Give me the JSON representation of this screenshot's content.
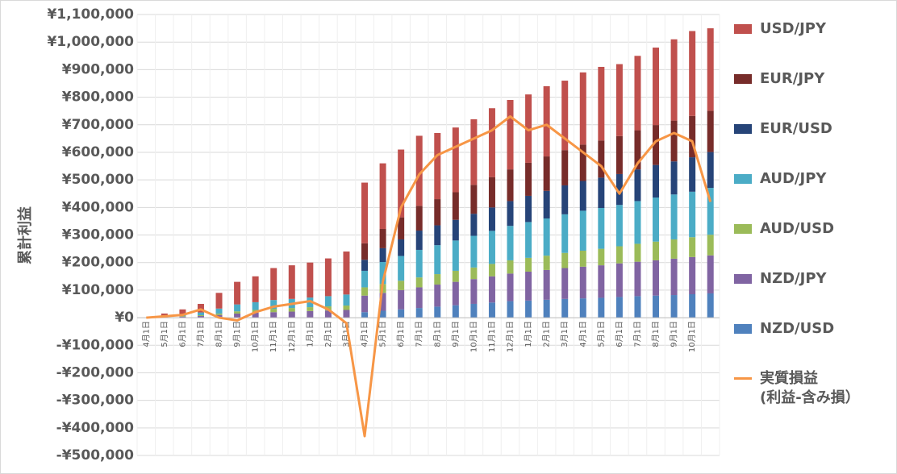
{
  "chart_data": {
    "type": "stacked-bar-line",
    "y_label": "累計利益",
    "categories": [
      "4月1日",
      "5月1日",
      "6月1日",
      "7月1日",
      "8月1日",
      "9月1日",
      "10月1日",
      "11月1日",
      "12月1日",
      "1月1日",
      "2月1日",
      "3月1日",
      "4月1日",
      "5月1日",
      "6月1日",
      "7月1日",
      "8月1日",
      "9月1日",
      "10月1日",
      "11月1日",
      "12月1日",
      "1月1日",
      "2月1日",
      "3月1日",
      "4月1日",
      "5月1日",
      "6月1日",
      "7月1日",
      "8月1日",
      "9月1日",
      "10月1日",
      null
    ],
    "series": [
      {
        "name": "USD/JPY",
        "color": "#c0504d",
        "values": [
          0,
          9000,
          18000,
          31000,
          57000,
          82000,
          94000,
          116000,
          122000,
          127000,
          137000,
          156000,
          220000,
          238000,
          246000,
          254000,
          240000,
          235000,
          238000,
          250000,
          252000,
          248000,
          255000,
          252000,
          262000,
          267000,
          261000,
          270000,
          281000,
          295000,
          308000,
          299000
        ]
      },
      {
        "name": "EUR/JPY",
        "color": "#772c2a",
        "values": [
          0,
          0,
          0,
          0,
          0,
          0,
          0,
          0,
          0,
          0,
          0,
          0,
          60000,
          70000,
          80000,
          90000,
          95000,
          100000,
          105000,
          110000,
          115000,
          120000,
          125000,
          128000,
          132000,
          135000,
          138000,
          142000,
          145000,
          148000,
          150000,
          150000
        ]
      },
      {
        "name": "EUR/USD",
        "color": "#264478",
        "values": [
          0,
          0,
          0,
          0,
          0,
          0,
          0,
          0,
          0,
          0,
          0,
          0,
          40000,
          50000,
          60000,
          70000,
          72000,
          75000,
          80000,
          85000,
          90000,
          95000,
          100000,
          105000,
          108000,
          110000,
          112000,
          115000,
          118000,
          120000,
          125000,
          130000
        ]
      },
      {
        "name": "AUD/JPY",
        "color": "#4bacc6",
        "values": [
          0,
          3000,
          6000,
          10000,
          18000,
          25000,
          28000,
          32000,
          33000,
          35000,
          37000,
          40000,
          60000,
          80000,
          90000,
          100000,
          105000,
          110000,
          115000,
          120000,
          125000,
          130000,
          135000,
          140000,
          145000,
          148000,
          150000,
          155000,
          160000,
          163000,
          165000,
          170000
        ]
      },
      {
        "name": "AUD/USD",
        "color": "#9bbb59",
        "values": [
          0,
          1000,
          2000,
          3000,
          5000,
          8000,
          10000,
          12000,
          13000,
          14000,
          15000,
          16000,
          30000,
          32000,
          34000,
          36000,
          38000,
          40000,
          42000,
          45000,
          48000,
          50000,
          52000,
          55000,
          58000,
          60000,
          62000,
          65000,
          68000,
          70000,
          72000,
          75000
        ]
      },
      {
        "name": "NZD/JPY",
        "color": "#8064a2",
        "values": [
          0,
          2000,
          4000,
          6000,
          10000,
          15000,
          18000,
          20000,
          22000,
          24000,
          26000,
          28000,
          60000,
          65000,
          70000,
          75000,
          80000,
          85000,
          90000,
          95000,
          100000,
          105000,
          108000,
          112000,
          115000,
          118000,
          122000,
          125000,
          128000,
          132000,
          135000,
          138000
        ]
      },
      {
        "name": "NZD/USD",
        "color": "#4f81bd",
        "values": [
          0,
          0,
          0,
          0,
          0,
          0,
          0,
          0,
          0,
          0,
          0,
          0,
          20000,
          25000,
          30000,
          35000,
          40000,
          45000,
          50000,
          55000,
          60000,
          62000,
          65000,
          68000,
          70000,
          72000,
          75000,
          78000,
          80000,
          82000,
          85000,
          88000
        ]
      },
      {
        "name": "実質損益\n(利益-含み損）",
        "color": "#f79646",
        "kind": "line",
        "values": [
          0,
          5000,
          10000,
          30000,
          0,
          -10000,
          20000,
          40000,
          50000,
          60000,
          30000,
          -20000,
          -430000,
          130000,
          400000,
          520000,
          590000,
          620000,
          650000,
          680000,
          730000,
          680000,
          700000,
          650000,
          600000,
          550000,
          450000,
          560000,
          640000,
          670000,
          640000,
          420000
        ]
      }
    ],
    "ylim": [
      -500000,
      1100000
    ],
    "yticks": [
      {
        "value": -500000,
        "label": "-¥500,000"
      },
      {
        "value": -400000,
        "label": "-¥400,000"
      },
      {
        "value": -300000,
        "label": "-¥300,000"
      },
      {
        "value": -200000,
        "label": "-¥200,000"
      },
      {
        "value": -100000,
        "label": "-¥100,000"
      },
      {
        "value": 0,
        "label": "¥0"
      },
      {
        "value": 100000,
        "label": "¥100,000"
      },
      {
        "value": 200000,
        "label": "¥200,000"
      },
      {
        "value": 300000,
        "label": "¥300,000"
      },
      {
        "value": 400000,
        "label": "¥400,000"
      },
      {
        "value": 500000,
        "label": "¥500,000"
      },
      {
        "value": 600000,
        "label": "¥600,000"
      },
      {
        "value": 700000,
        "label": "¥700,000"
      },
      {
        "value": 800000,
        "label": "¥800,000"
      },
      {
        "value": 900000,
        "label": "¥900,000"
      },
      {
        "value": 1000000,
        "label": "¥1,000,000"
      },
      {
        "value": 1100000,
        "label": "¥1,100,000"
      }
    ],
    "negative_color": "#ff0000",
    "grid": true,
    "legend": "right"
  }
}
